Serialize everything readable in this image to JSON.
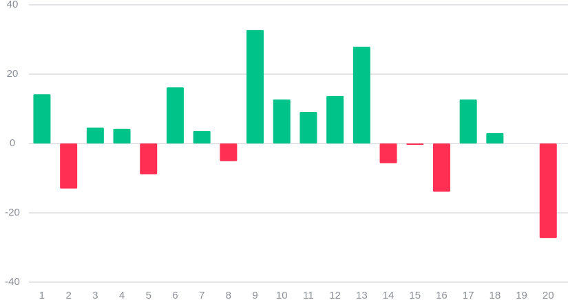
{
  "chart_data": {
    "type": "bar",
    "categories": [
      "1",
      "2",
      "3",
      "4",
      "5",
      "6",
      "7",
      "8",
      "9",
      "10",
      "11",
      "12",
      "13",
      "14",
      "15",
      "16",
      "17",
      "18",
      "19",
      "20"
    ],
    "values": [
      14.2,
      -13,
      4.6,
      4.2,
      -8.9,
      16.2,
      3.6,
      -5.1,
      32.7,
      12.7,
      9.1,
      13.7,
      27.9,
      -5.7,
      -0.4,
      -13.9,
      12.7,
      3.0,
      0,
      -27.3
    ],
    "positive_color": "#00c38a",
    "negative_color": "#ff2e52",
    "ylim": [
      -40,
      40
    ],
    "yticks": [
      -40,
      -20,
      0,
      20,
      40
    ],
    "grid": true
  }
}
